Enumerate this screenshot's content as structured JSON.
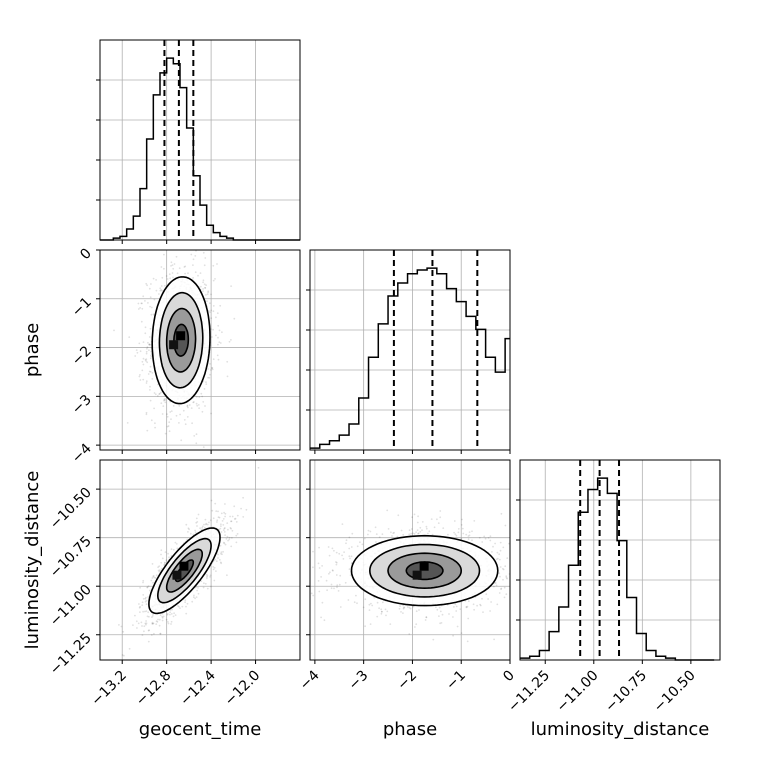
{
  "chart_data": {
    "type": "corner",
    "parameters": [
      "geocent_time",
      "phase",
      "luminosity_distance"
    ],
    "ranges": {
      "geocent_time": [
        -13.4,
        -11.6
      ],
      "phase": [
        -4.1,
        0.0
      ],
      "luminosity_distance": [
        -11.38,
        -10.35
      ]
    },
    "ticks": {
      "geocent_time": [
        -13.2,
        -12.8,
        -12.4,
        -12.0
      ],
      "phase": [
        -4,
        -3,
        -2,
        -1,
        0
      ],
      "luminosity_distance": [
        -11.25,
        -11.0,
        -10.75,
        -10.5
      ]
    },
    "tick_labels": {
      "geocent_time": [
        "−13.2",
        "−12.8",
        "−12.4",
        "−12.0"
      ],
      "phase": [
        "−4",
        "−3",
        "−2",
        "−1",
        "0"
      ],
      "luminosity_distance": [
        "−11.25",
        "−11.00",
        "−10.75",
        "−10.50"
      ]
    },
    "axis_labels": {
      "x_geocent_time": "geocent_time",
      "x_phase": "phase",
      "x_luminosity_distance": "luminosity_distance",
      "y_phase": "phase",
      "y_luminosity_distance": "luminosity_distance"
    },
    "histograms": [
      {
        "param": "geocent_time",
        "quantiles": [
          -12.82,
          -12.69,
          -12.56
        ],
        "bin_edges": [
          -13.4,
          -13.34,
          -13.28,
          -13.22,
          -13.16,
          -13.1,
          -13.04,
          -12.98,
          -12.92,
          -12.86,
          -12.8,
          -12.74,
          -12.68,
          -12.62,
          -12.56,
          -12.5,
          -12.44,
          -12.38,
          -12.32,
          -12.26,
          -12.2,
          -12.14,
          -12.08,
          -12.02,
          -11.96,
          -11.9,
          -11.84,
          -11.78,
          -11.72,
          -11.66,
          -11.6
        ],
        "counts": [
          0,
          0,
          1,
          2,
          6,
          13,
          28,
          55,
          79,
          91,
          99,
          96,
          83,
          61,
          35,
          19,
          8,
          4,
          2,
          1,
          0,
          0,
          0,
          0,
          0,
          0,
          0,
          0,
          0,
          0
        ]
      },
      {
        "param": "phase",
        "quantiles": [
          -2.38,
          -1.59,
          -0.67
        ],
        "bin_edges": [
          -4.1,
          -3.9,
          -3.7,
          -3.5,
          -3.3,
          -3.1,
          -2.9,
          -2.7,
          -2.5,
          -2.3,
          -2.1,
          -1.9,
          -1.7,
          -1.5,
          -1.3,
          -1.1,
          -0.9,
          -0.7,
          -0.5,
          -0.3,
          -0.1,
          0.0
        ],
        "counts": [
          1,
          3,
          5,
          8,
          14,
          28,
          50,
          68,
          83,
          90,
          95,
          97,
          98,
          95,
          87,
          80,
          72,
          65,
          50,
          42,
          60
        ]
      },
      {
        "param": "luminosity_distance",
        "quantiles": [
          -11.07,
          -10.97,
          -10.87
        ],
        "bin_edges": [
          -11.38,
          -11.33,
          -11.28,
          -11.23,
          -11.18,
          -11.13,
          -11.08,
          -11.03,
          -10.98,
          -10.93,
          -10.88,
          -10.83,
          -10.78,
          -10.73,
          -10.68,
          -10.63,
          -10.58,
          -10.53,
          -10.48,
          -10.43,
          -10.38
        ],
        "counts": [
          1,
          2,
          5,
          15,
          28,
          50,
          78,
          90,
          96,
          88,
          63,
          33,
          14,
          5,
          2,
          1,
          0,
          0,
          0,
          0
        ]
      }
    ],
    "scatter_2d": [
      {
        "x": "geocent_time",
        "y": "phase",
        "x_mean": -12.67,
        "y_mean": -1.85,
        "x_sd": 0.13,
        "y_sd": 0.65,
        "correlation": 0.05,
        "contour_levels_sigma": [
          0.5,
          1.0,
          1.5,
          2.0
        ]
      },
      {
        "x": "geocent_time",
        "y": "luminosity_distance",
        "x_mean": -12.64,
        "y_mean": -10.92,
        "x_sd": 0.16,
        "y_sd": 0.11,
        "correlation": 0.78,
        "contour_levels_sigma": [
          0.5,
          1.0,
          1.5,
          2.0
        ]
      },
      {
        "x": "phase",
        "y": "luminosity_distance",
        "x_mean": -1.75,
        "y_mean": -10.92,
        "x_sd": 0.75,
        "y_sd": 0.09,
        "correlation": 0.0,
        "contour_levels_sigma": [
          0.5,
          1.0,
          1.5,
          2.0
        ]
      }
    ],
    "grid": true,
    "quantile_style": "dashed"
  }
}
